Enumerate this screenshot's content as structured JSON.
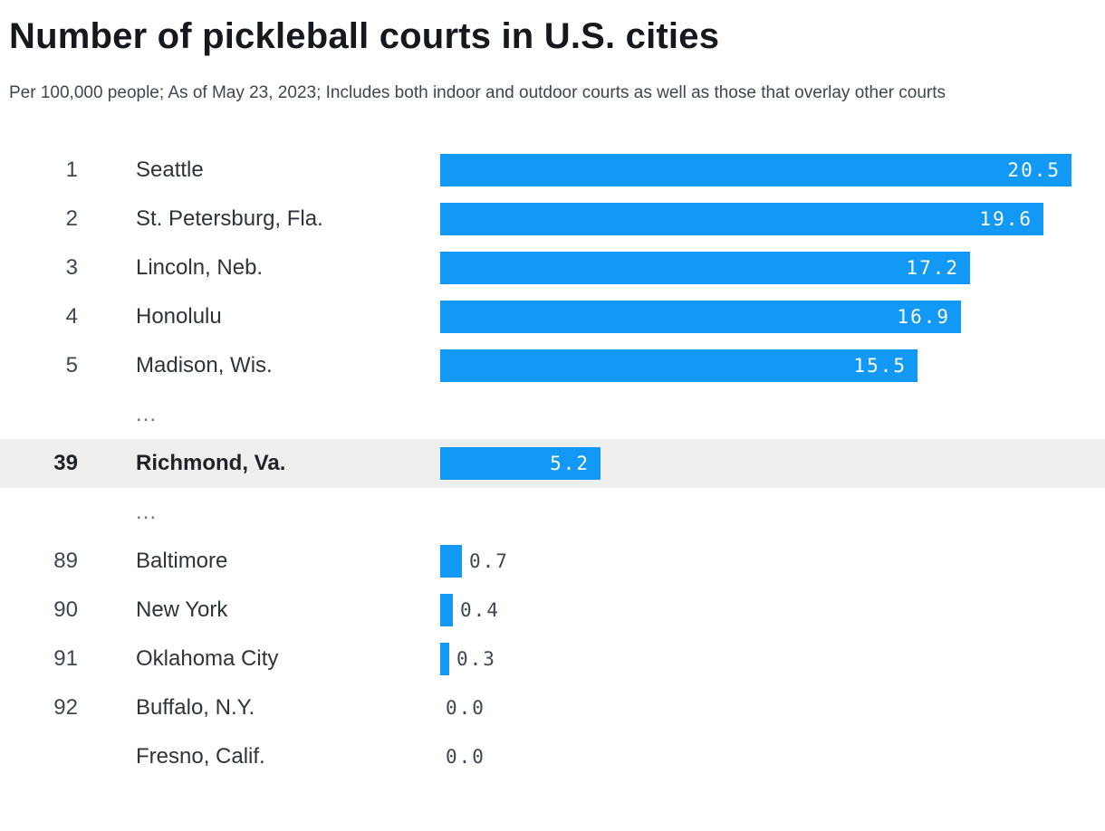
{
  "chart_data": {
    "type": "bar",
    "title": "Number of pickleball courts in U.S. cities",
    "subtitle": "Per 100,000 people; As of May 23, 2023; Includes both indoor and outdoor courts as well as those that overlay other courts",
    "xlabel": "",
    "ylabel": "",
    "xlim": [
      0,
      20.5
    ],
    "grid": false,
    "legend": "none",
    "bar_color": "#1298f5",
    "highlight_row_color": "#efefef",
    "rows": [
      {
        "rank": "1",
        "city": "Seattle",
        "value": 20.5,
        "label": "20.5",
        "highlight": false,
        "ellipsis": false
      },
      {
        "rank": "2",
        "city": "St. Petersburg, Fla.",
        "value": 19.6,
        "label": "19.6",
        "highlight": false,
        "ellipsis": false
      },
      {
        "rank": "3",
        "city": "Lincoln, Neb.",
        "value": 17.2,
        "label": "17.2",
        "highlight": false,
        "ellipsis": false
      },
      {
        "rank": "4",
        "city": "Honolulu",
        "value": 16.9,
        "label": "16.9",
        "highlight": false,
        "ellipsis": false
      },
      {
        "rank": "5",
        "city": "Madison, Wis.",
        "value": 15.5,
        "label": "15.5",
        "highlight": false,
        "ellipsis": false
      },
      {
        "rank": "",
        "city": "...",
        "value": null,
        "label": "",
        "highlight": false,
        "ellipsis": true
      },
      {
        "rank": "39",
        "city": "Richmond, Va.",
        "value": 5.2,
        "label": "5.2",
        "highlight": true,
        "ellipsis": false
      },
      {
        "rank": "",
        "city": "...",
        "value": null,
        "label": "",
        "highlight": false,
        "ellipsis": true
      },
      {
        "rank": "89",
        "city": "Baltimore",
        "value": 0.7,
        "label": "0.7",
        "highlight": false,
        "ellipsis": false
      },
      {
        "rank": "90",
        "city": "New York",
        "value": 0.4,
        "label": "0.4",
        "highlight": false,
        "ellipsis": false
      },
      {
        "rank": "91",
        "city": "Oklahoma City",
        "value": 0.3,
        "label": "0.3",
        "highlight": false,
        "ellipsis": false
      },
      {
        "rank": "92",
        "city": "Buffalo, N.Y.",
        "value": 0.0,
        "label": "0.0",
        "highlight": false,
        "ellipsis": false
      },
      {
        "rank": "",
        "city": "Fresno, Calif.",
        "value": 0.0,
        "label": "0.0",
        "highlight": false,
        "ellipsis": false
      }
    ]
  }
}
